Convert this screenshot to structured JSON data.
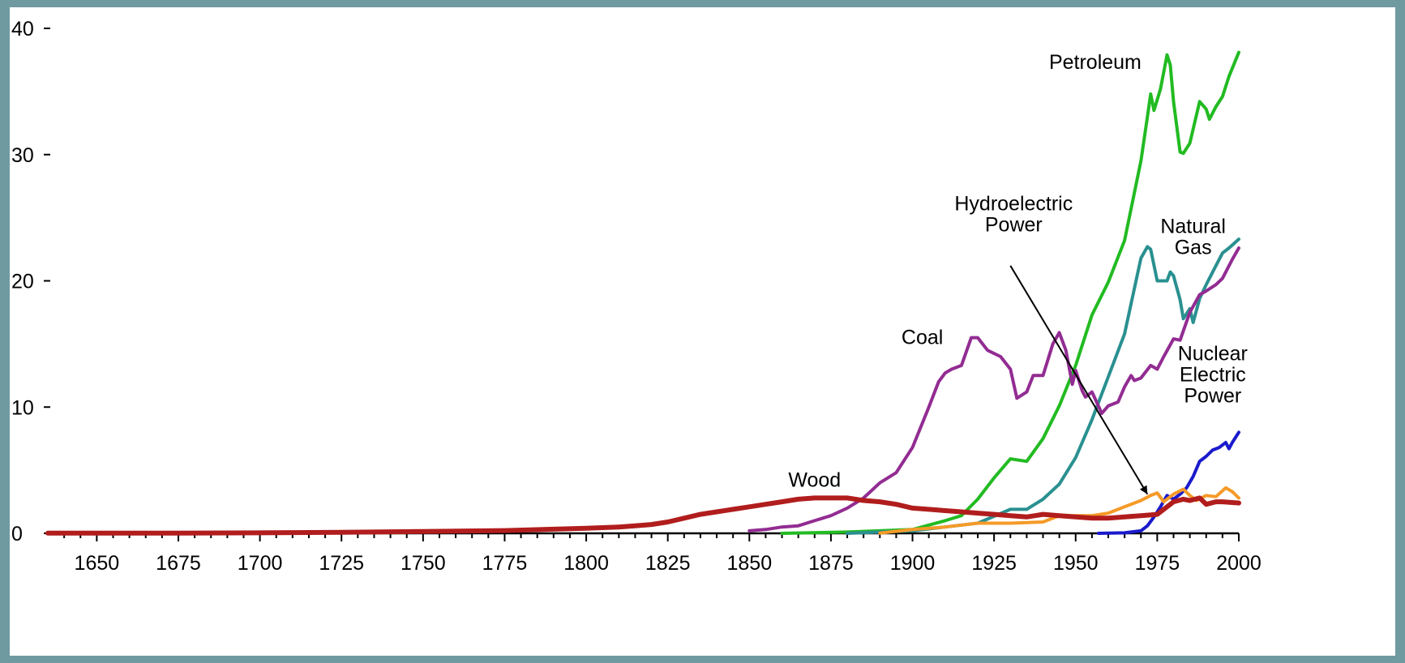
{
  "chart_data": {
    "type": "line",
    "title": "",
    "xlabel": "",
    "ylabel": "",
    "xlim": [
      1635,
      2000
    ],
    "ylim": [
      0,
      40
    ],
    "x_ticks": [
      1650,
      1675,
      1700,
      1725,
      1750,
      1775,
      1800,
      1825,
      1850,
      1875,
      1900,
      1925,
      1950,
      1975,
      2000
    ],
    "x_tick_labels": [
      "1650",
      "1675",
      "1700",
      "1725",
      "1750",
      "1775",
      "1800",
      "1825",
      "1850",
      "1875",
      "1900",
      "1925",
      "1950",
      "1975",
      "2000"
    ],
    "y_ticks": [
      0,
      10,
      20,
      30,
      40
    ],
    "y_tick_labels": [
      "0",
      "10",
      "20",
      "30",
      "40"
    ],
    "grid": false,
    "series": [
      {
        "name": "Petroleum",
        "color": "#22bb22",
        "points": [
          [
            1860,
            0
          ],
          [
            1880,
            0.1
          ],
          [
            1890,
            0.2
          ],
          [
            1900,
            0.3
          ],
          [
            1910,
            1.0
          ],
          [
            1915,
            1.4
          ],
          [
            1920,
            2.7
          ],
          [
            1925,
            4.4
          ],
          [
            1930,
            5.9
          ],
          [
            1935,
            5.7
          ],
          [
            1940,
            7.5
          ],
          [
            1945,
            10.1
          ],
          [
            1950,
            13.3
          ],
          [
            1955,
            17.3
          ],
          [
            1960,
            19.9
          ],
          [
            1965,
            23.2
          ],
          [
            1970,
            29.5
          ],
          [
            1972,
            33.0
          ],
          [
            1973,
            34.8
          ],
          [
            1974,
            33.5
          ],
          [
            1976,
            35.2
          ],
          [
            1978,
            37.9
          ],
          [
            1979,
            37.1
          ],
          [
            1980,
            34.2
          ],
          [
            1982,
            30.2
          ],
          [
            1983,
            30.1
          ],
          [
            1985,
            30.9
          ],
          [
            1988,
            34.2
          ],
          [
            1990,
            33.6
          ],
          [
            1991,
            32.8
          ],
          [
            1993,
            33.8
          ],
          [
            1995,
            34.6
          ],
          [
            1997,
            36.2
          ],
          [
            2000,
            38.1
          ]
        ]
      },
      {
        "name": "Natural Gas",
        "color": "#2a9090",
        "points": [
          [
            1880,
            0
          ],
          [
            1900,
            0.2
          ],
          [
            1910,
            0.5
          ],
          [
            1920,
            0.8
          ],
          [
            1930,
            1.9
          ],
          [
            1935,
            1.9
          ],
          [
            1940,
            2.7
          ],
          [
            1945,
            3.9
          ],
          [
            1950,
            6.0
          ],
          [
            1955,
            9.0
          ],
          [
            1960,
            12.4
          ],
          [
            1965,
            15.8
          ],
          [
            1970,
            21.8
          ],
          [
            1972,
            22.7
          ],
          [
            1973,
            22.5
          ],
          [
            1975,
            20.0
          ],
          [
            1978,
            20.0
          ],
          [
            1979,
            20.7
          ],
          [
            1980,
            20.4
          ],
          [
            1982,
            18.5
          ],
          [
            1983,
            17.0
          ],
          [
            1985,
            17.8
          ],
          [
            1986,
            16.7
          ],
          [
            1988,
            18.6
          ],
          [
            1990,
            19.7
          ],
          [
            1992,
            20.7
          ],
          [
            1995,
            22.2
          ],
          [
            1997,
            22.6
          ],
          [
            2000,
            23.3
          ]
        ]
      },
      {
        "name": "Coal",
        "color": "#922c92",
        "points": [
          [
            1850,
            0.2
          ],
          [
            1855,
            0.3
          ],
          [
            1860,
            0.5
          ],
          [
            1865,
            0.6
          ],
          [
            1870,
            1.0
          ],
          [
            1875,
            1.4
          ],
          [
            1880,
            2.0
          ],
          [
            1885,
            2.8
          ],
          [
            1890,
            4.0
          ],
          [
            1895,
            4.8
          ],
          [
            1900,
            6.8
          ],
          [
            1905,
            10.0
          ],
          [
            1908,
            12.0
          ],
          [
            1910,
            12.7
          ],
          [
            1912,
            13.0
          ],
          [
            1915,
            13.3
          ],
          [
            1918,
            15.5
          ],
          [
            1920,
            15.5
          ],
          [
            1923,
            14.5
          ],
          [
            1927,
            14.0
          ],
          [
            1930,
            13.0
          ],
          [
            1932,
            10.7
          ],
          [
            1935,
            11.2
          ],
          [
            1937,
            12.5
          ],
          [
            1940,
            12.5
          ],
          [
            1943,
            15.0
          ],
          [
            1945,
            15.9
          ],
          [
            1947,
            14.5
          ],
          [
            1949,
            11.8
          ],
          [
            1950,
            12.9
          ],
          [
            1952,
            11.3
          ],
          [
            1953,
            10.8
          ],
          [
            1955,
            11.2
          ],
          [
            1958,
            9.5
          ],
          [
            1960,
            10.1
          ],
          [
            1963,
            10.4
          ],
          [
            1965,
            11.6
          ],
          [
            1967,
            12.5
          ],
          [
            1968,
            12.1
          ],
          [
            1970,
            12.3
          ],
          [
            1973,
            13.3
          ],
          [
            1975,
            13.0
          ],
          [
            1977,
            14.0
          ],
          [
            1980,
            15.4
          ],
          [
            1982,
            15.3
          ],
          [
            1985,
            17.5
          ],
          [
            1988,
            18.9
          ],
          [
            1990,
            19.2
          ],
          [
            1993,
            19.7
          ],
          [
            1995,
            20.2
          ],
          [
            1998,
            21.7
          ],
          [
            2000,
            22.6
          ]
        ]
      },
      {
        "name": "Nuclear Electric Power",
        "color": "#1a1acc",
        "points": [
          [
            1957,
            0
          ],
          [
            1965,
            0.04
          ],
          [
            1970,
            0.2
          ],
          [
            1972,
            0.6
          ],
          [
            1974,
            1.3
          ],
          [
            1976,
            2.1
          ],
          [
            1978,
            3.0
          ],
          [
            1980,
            2.7
          ],
          [
            1982,
            3.1
          ],
          [
            1984,
            3.6
          ],
          [
            1986,
            4.5
          ],
          [
            1988,
            5.7
          ],
          [
            1990,
            6.1
          ],
          [
            1992,
            6.6
          ],
          [
            1994,
            6.8
          ],
          [
            1996,
            7.2
          ],
          [
            1997,
            6.7
          ],
          [
            1998,
            7.2
          ],
          [
            2000,
            8.0
          ]
        ]
      },
      {
        "name": "Hydroelectric Power",
        "color": "#f59a28",
        "points": [
          [
            1890,
            0.02
          ],
          [
            1900,
            0.3
          ],
          [
            1910,
            0.5
          ],
          [
            1920,
            0.8
          ],
          [
            1930,
            0.8
          ],
          [
            1940,
            0.9
          ],
          [
            1945,
            1.4
          ],
          [
            1950,
            1.4
          ],
          [
            1955,
            1.4
          ],
          [
            1960,
            1.6
          ],
          [
            1965,
            2.1
          ],
          [
            1970,
            2.6
          ],
          [
            1973,
            3.0
          ],
          [
            1975,
            3.2
          ],
          [
            1977,
            2.5
          ],
          [
            1980,
            3.1
          ],
          [
            1983,
            3.5
          ],
          [
            1985,
            3.0
          ],
          [
            1987,
            2.6
          ],
          [
            1990,
            3.0
          ],
          [
            1993,
            2.9
          ],
          [
            1996,
            3.6
          ],
          [
            1998,
            3.3
          ],
          [
            2000,
            2.8
          ]
        ]
      },
      {
        "name": "Wood",
        "color": "#b11d1d",
        "points": [
          [
            1635,
            0.01
          ],
          [
            1650,
            0.01
          ],
          [
            1675,
            0.02
          ],
          [
            1700,
            0.04
          ],
          [
            1725,
            0.08
          ],
          [
            1750,
            0.15
          ],
          [
            1775,
            0.22
          ],
          [
            1800,
            0.4
          ],
          [
            1810,
            0.5
          ],
          [
            1815,
            0.6
          ],
          [
            1820,
            0.7
          ],
          [
            1825,
            0.9
          ],
          [
            1830,
            1.2
          ],
          [
            1835,
            1.5
          ],
          [
            1840,
            1.7
          ],
          [
            1845,
            1.9
          ],
          [
            1850,
            2.1
          ],
          [
            1855,
            2.3
          ],
          [
            1860,
            2.5
          ],
          [
            1865,
            2.7
          ],
          [
            1870,
            2.8
          ],
          [
            1875,
            2.8
          ],
          [
            1880,
            2.8
          ],
          [
            1885,
            2.6
          ],
          [
            1890,
            2.5
          ],
          [
            1895,
            2.3
          ],
          [
            1900,
            2.0
          ],
          [
            1905,
            1.9
          ],
          [
            1910,
            1.8
          ],
          [
            1915,
            1.7
          ],
          [
            1920,
            1.6
          ],
          [
            1925,
            1.5
          ],
          [
            1930,
            1.4
          ],
          [
            1935,
            1.3
          ],
          [
            1940,
            1.5
          ],
          [
            1945,
            1.4
          ],
          [
            1950,
            1.3
          ],
          [
            1955,
            1.2
          ],
          [
            1960,
            1.2
          ],
          [
            1965,
            1.3
          ],
          [
            1970,
            1.4
          ],
          [
            1975,
            1.5
          ],
          [
            1980,
            2.5
          ],
          [
            1983,
            2.7
          ],
          [
            1985,
            2.6
          ],
          [
            1988,
            2.8
          ],
          [
            1990,
            2.3
          ],
          [
            1993,
            2.5
          ],
          [
            1995,
            2.5
          ],
          [
            2000,
            2.4
          ]
        ]
      }
    ],
    "annotations": [
      {
        "label": "petroleum",
        "lines": [
          "Petroleum"
        ],
        "x": 1956,
        "y": 36.8,
        "anchor": "middle"
      },
      {
        "label": "natural-gas",
        "lines": [
          "Natural",
          "Gas"
        ],
        "x": 1986,
        "y": 23.8,
        "anchor": "middle"
      },
      {
        "label": "hydroelectric",
        "lines": [
          "Hydroelectric",
          "Power"
        ],
        "x": 1931,
        "y": 25.6,
        "anchor": "middle"
      },
      {
        "label": "coal",
        "lines": [
          "Coal"
        ],
        "x": 1903,
        "y": 15.0,
        "anchor": "middle"
      },
      {
        "label": "nuclear",
        "lines": [
          "Nuclear",
          "Electric",
          "Power"
        ],
        "x": 1992,
        "y": 13.7,
        "anchor": "middle"
      },
      {
        "label": "wood",
        "lines": [
          "Wood"
        ],
        "x": 1870,
        "y": 3.7,
        "anchor": "middle"
      }
    ],
    "arrow": {
      "from": [
        1930,
        21.2
      ],
      "to": [
        1972,
        3.1
      ]
    }
  }
}
